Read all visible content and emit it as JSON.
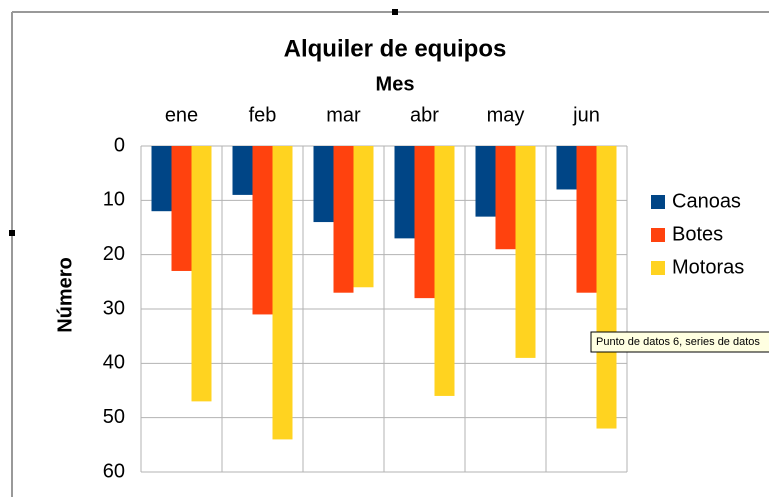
{
  "chart_data": {
    "type": "bar",
    "title": "Alquiler de equipos",
    "x_label": "Mes",
    "y_label": "Número",
    "categories": [
      "ene",
      "feb",
      "mar",
      "abr",
      "may",
      "jun"
    ],
    "series": [
      {
        "name": "Canoas",
        "color": "#004586",
        "values": [
          12,
          9,
          14,
          17,
          13,
          8
        ]
      },
      {
        "name": "Botes",
        "color": "#ff420e",
        "values": [
          23,
          31,
          27,
          28,
          19,
          27
        ]
      },
      {
        "name": "Motoras",
        "color": "#ffd320",
        "values": [
          47,
          54,
          26,
          46,
          39,
          52
        ]
      }
    ],
    "ylim": [
      0,
      60
    ],
    "yticks": [
      0,
      10,
      20,
      30,
      40,
      50,
      60
    ],
    "y_inverted": true,
    "x_axis_position": "top",
    "grid": true,
    "legend": "right",
    "tooltip": "Punto de datos 6, series de datos"
  }
}
